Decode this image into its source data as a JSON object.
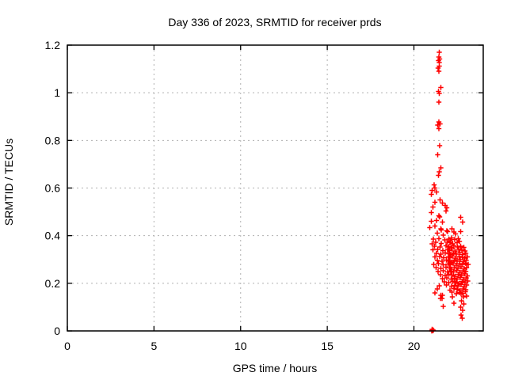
{
  "chart_data": {
    "type": "scatter",
    "title": "Day 336 of 2023, SRMTID for receiver prds",
    "xlabel": "GPS time / hours",
    "ylabel": "SRMTID / TECUs",
    "xlim": [
      0,
      24
    ],
    "ylim": [
      0,
      1.2
    ],
    "xticks": [
      0,
      5,
      10,
      15,
      20
    ],
    "xtick_labels": [
      "0",
      "5",
      "10",
      "15",
      "20"
    ],
    "yticks": [
      0,
      0.2,
      0.4,
      0.6,
      0.8,
      1.0,
      1.2
    ],
    "ytick_labels": [
      "0",
      "0.2",
      "0.4",
      "0.6",
      "0.8",
      "1",
      "1.2"
    ],
    "grid": true,
    "legend": null,
    "marker": "plus",
    "series": [
      {
        "name": "SRMTID",
        "color": "#ff0000",
        "points": [
          [
            21.47,
            1.17
          ],
          [
            21.44,
            1.15
          ],
          [
            21.49,
            1.142
          ],
          [
            21.42,
            1.136
          ],
          [
            21.46,
            1.127
          ],
          [
            21.47,
            1.112
          ],
          [
            21.39,
            1.104
          ],
          [
            21.45,
            1.09
          ],
          [
            21.55,
            1.022
          ],
          [
            21.42,
            1.005
          ],
          [
            21.47,
            0.997
          ],
          [
            21.45,
            0.96
          ],
          [
            21.43,
            0.878
          ],
          [
            21.5,
            0.87
          ],
          [
            21.38,
            0.864
          ],
          [
            21.44,
            0.85
          ],
          [
            21.48,
            0.778
          ],
          [
            21.38,
            0.74
          ],
          [
            21.56,
            0.685
          ],
          [
            21.47,
            0.668
          ],
          [
            21.42,
            0.653
          ],
          [
            21.16,
            0.613
          ],
          [
            21.22,
            0.6
          ],
          [
            21.05,
            0.59
          ],
          [
            21.3,
            0.583
          ],
          [
            21.0,
            0.573
          ],
          [
            21.5,
            0.55
          ],
          [
            21.2,
            0.54
          ],
          [
            21.65,
            0.537
          ],
          [
            21.8,
            0.527
          ],
          [
            21.1,
            0.52
          ],
          [
            21.9,
            0.517
          ],
          [
            21.85,
            0.503
          ],
          [
            21.0,
            0.497
          ],
          [
            21.45,
            0.483
          ],
          [
            21.48,
            0.478
          ],
          [
            22.7,
            0.477
          ],
          [
            21.3,
            0.463
          ],
          [
            21.0,
            0.46
          ],
          [
            21.65,
            0.457
          ],
          [
            22.8,
            0.457
          ],
          [
            21.2,
            0.44
          ],
          [
            20.92,
            0.433
          ],
          [
            21.55,
            0.428
          ],
          [
            21.58,
            0.424
          ],
          [
            21.9,
            0.42
          ],
          [
            22.7,
            0.417
          ],
          [
            21.35,
            0.41
          ],
          [
            21.95,
            0.418
          ],
          [
            22.2,
            0.428
          ],
          [
            22.3,
            0.415
          ],
          [
            21.7,
            0.402
          ],
          [
            22.4,
            0.408
          ],
          [
            21.12,
            0.385
          ],
          [
            21.45,
            0.388
          ],
          [
            21.78,
            0.382
          ],
          [
            22.02,
            0.386
          ],
          [
            22.18,
            0.39
          ],
          [
            22.35,
            0.384
          ],
          [
            22.55,
            0.388
          ],
          [
            22.1,
            0.378
          ],
          [
            21.25,
            0.372
          ],
          [
            21.58,
            0.368
          ],
          [
            21.92,
            0.373
          ],
          [
            22.08,
            0.37
          ],
          [
            22.25,
            0.366
          ],
          [
            22.48,
            0.371
          ],
          [
            22.62,
            0.375
          ],
          [
            21.05,
            0.365
          ],
          [
            21.18,
            0.356
          ],
          [
            21.5,
            0.352
          ],
          [
            21.85,
            0.357
          ],
          [
            22.0,
            0.354
          ],
          [
            22.15,
            0.35
          ],
          [
            22.3,
            0.358
          ],
          [
            22.52,
            0.353
          ],
          [
            22.7,
            0.356
          ],
          [
            22.88,
            0.351
          ],
          [
            21.1,
            0.34
          ],
          [
            21.38,
            0.343
          ],
          [
            21.66,
            0.337
          ],
          [
            21.95,
            0.341
          ],
          [
            22.05,
            0.338
          ],
          [
            22.2,
            0.344
          ],
          [
            22.38,
            0.336
          ],
          [
            22.58,
            0.342
          ],
          [
            22.76,
            0.339
          ],
          [
            22.95,
            0.335
          ],
          [
            21.3,
            0.326
          ],
          [
            21.55,
            0.322
          ],
          [
            21.8,
            0.328
          ],
          [
            22.02,
            0.324
          ],
          [
            22.12,
            0.32
          ],
          [
            22.28,
            0.327
          ],
          [
            22.45,
            0.323
          ],
          [
            22.64,
            0.329
          ],
          [
            22.82,
            0.321
          ],
          [
            23.0,
            0.325
          ],
          [
            21.2,
            0.31
          ],
          [
            21.48,
            0.313
          ],
          [
            21.72,
            0.307
          ],
          [
            21.98,
            0.311
          ],
          [
            22.08,
            0.308
          ],
          [
            22.22,
            0.314
          ],
          [
            22.4,
            0.306
          ],
          [
            22.6,
            0.312
          ],
          [
            22.78,
            0.309
          ],
          [
            22.92,
            0.305
          ],
          [
            23.08,
            0.311
          ],
          [
            21.35,
            0.296
          ],
          [
            21.62,
            0.292
          ],
          [
            21.88,
            0.298
          ],
          [
            22.04,
            0.294
          ],
          [
            22.16,
            0.29
          ],
          [
            22.32,
            0.297
          ],
          [
            22.5,
            0.293
          ],
          [
            22.68,
            0.299
          ],
          [
            22.86,
            0.291
          ],
          [
            23.02,
            0.296
          ],
          [
            21.15,
            0.28
          ],
          [
            21.42,
            0.283
          ],
          [
            21.7,
            0.277
          ],
          [
            21.96,
            0.281
          ],
          [
            22.1,
            0.278
          ],
          [
            22.26,
            0.284
          ],
          [
            22.44,
            0.276
          ],
          [
            22.62,
            0.282
          ],
          [
            22.8,
            0.279
          ],
          [
            22.98,
            0.285
          ],
          [
            23.12,
            0.28
          ],
          [
            21.28,
            0.266
          ],
          [
            21.56,
            0.262
          ],
          [
            21.84,
            0.268
          ],
          [
            22.06,
            0.264
          ],
          [
            22.18,
            0.26
          ],
          [
            22.34,
            0.267
          ],
          [
            22.54,
            0.263
          ],
          [
            22.72,
            0.269
          ],
          [
            22.9,
            0.261
          ],
          [
            23.05,
            0.266
          ],
          [
            21.4,
            0.25
          ],
          [
            21.68,
            0.253
          ],
          [
            21.94,
            0.247
          ],
          [
            22.12,
            0.251
          ],
          [
            22.28,
            0.248
          ],
          [
            22.46,
            0.254
          ],
          [
            22.66,
            0.246
          ],
          [
            22.84,
            0.252
          ],
          [
            23.0,
            0.249
          ],
          [
            21.52,
            0.236
          ],
          [
            21.8,
            0.232
          ],
          [
            22.02,
            0.238
          ],
          [
            22.2,
            0.234
          ],
          [
            22.38,
            0.23
          ],
          [
            22.56,
            0.237
          ],
          [
            22.74,
            0.233
          ],
          [
            22.92,
            0.239
          ],
          [
            23.08,
            0.231
          ],
          [
            21.64,
            0.22
          ],
          [
            21.9,
            0.223
          ],
          [
            22.14,
            0.217
          ],
          [
            22.32,
            0.221
          ],
          [
            22.5,
            0.218
          ],
          [
            22.68,
            0.224
          ],
          [
            22.86,
            0.216
          ],
          [
            23.02,
            0.222
          ],
          [
            21.76,
            0.206
          ],
          [
            22.0,
            0.202
          ],
          [
            22.24,
            0.208
          ],
          [
            22.42,
            0.204
          ],
          [
            22.6,
            0.2
          ],
          [
            22.78,
            0.207
          ],
          [
            22.94,
            0.203
          ],
          [
            23.1,
            0.209
          ],
          [
            21.46,
            0.19
          ],
          [
            21.88,
            0.193
          ],
          [
            22.16,
            0.187
          ],
          [
            22.36,
            0.191
          ],
          [
            22.54,
            0.188
          ],
          [
            22.72,
            0.194
          ],
          [
            22.9,
            0.186
          ],
          [
            23.04,
            0.192
          ],
          [
            21.34,
            0.176
          ],
          [
            22.08,
            0.172
          ],
          [
            22.3,
            0.178
          ],
          [
            22.48,
            0.174
          ],
          [
            22.66,
            0.17
          ],
          [
            22.84,
            0.177
          ],
          [
            23.0,
            0.173
          ],
          [
            21.22,
            0.16
          ],
          [
            22.2,
            0.163
          ],
          [
            22.44,
            0.157
          ],
          [
            22.62,
            0.161
          ],
          [
            22.8,
            0.158
          ],
          [
            22.96,
            0.164
          ],
          [
            21.55,
            0.15
          ],
          [
            21.65,
            0.15
          ],
          [
            21.52,
            0.137
          ],
          [
            21.62,
            0.137
          ],
          [
            22.22,
            0.143
          ],
          [
            22.3,
            0.117
          ],
          [
            21.7,
            0.103
          ],
          [
            22.72,
            0.157
          ],
          [
            22.74,
            0.127
          ],
          [
            22.7,
            0.1
          ],
          [
            22.73,
            0.067
          ],
          [
            22.85,
            0.143
          ],
          [
            22.88,
            0.113
          ],
          [
            22.82,
            0.087
          ],
          [
            23.05,
            0.147
          ],
          [
            22.78,
            0.053
          ],
          [
            21.03,
            0.0
          ],
          [
            21.06,
            0.004
          ],
          [
            21.09,
            0.001
          ],
          [
            21.05,
            0.007
          ],
          [
            21.11,
            0.003
          ]
        ]
      }
    ]
  },
  "colors": {
    "marker": "#ff0000",
    "grid": "#b0b0b0",
    "axis": "#000000",
    "background": "#ffffff",
    "text": "#000000"
  }
}
